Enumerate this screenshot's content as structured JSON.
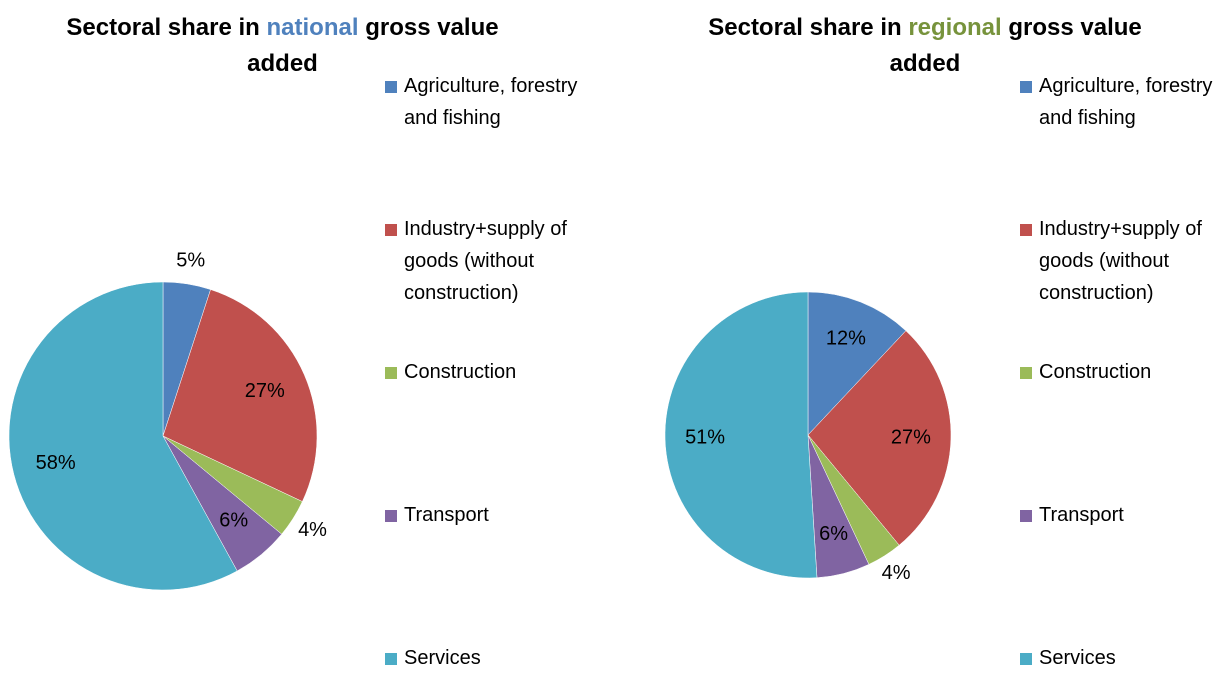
{
  "chart_data": [
    {
      "type": "pie",
      "title_parts": [
        {
          "text": "Sectoral share in",
          "color": "#000000"
        },
        {
          "text": "national",
          "color": "#4f81bd"
        },
        {
          "text": "gross value added",
          "color": "#000000"
        }
      ],
      "categories": [
        "Agriculture, forestry and fishing",
        "Industry+supply of goods (without construction)",
        "Construction",
        "Transport",
        "Services"
      ],
      "values": [
        5,
        27,
        4,
        6,
        58
      ],
      "value_labels": [
        "5%",
        "27%",
        "4%",
        "6%",
        "58%"
      ],
      "colors": [
        "#4f81bd",
        "#c0504d",
        "#9bbb59",
        "#8064a2",
        "#4bacc6"
      ],
      "legend": "right"
    },
    {
      "type": "pie",
      "title_parts": [
        {
          "text": "Sectoral share in",
          "color": "#000000"
        },
        {
          "text": "regional",
          "color": "#77933c"
        },
        {
          "text": "gross value added",
          "color": "#000000"
        }
      ],
      "categories": [
        "Agriculture, forestry and fishing",
        "Industry+supply of goods (without construction)",
        "Construction",
        "Transport",
        "Services"
      ],
      "values": [
        12,
        27,
        4,
        6,
        51
      ],
      "value_labels": [
        "12%",
        "27%",
        "4%",
        "6%",
        "51%"
      ],
      "colors": [
        "#4f81bd",
        "#c0504d",
        "#9bbb59",
        "#8064a2",
        "#4bacc6"
      ],
      "legend": "right"
    }
  ]
}
